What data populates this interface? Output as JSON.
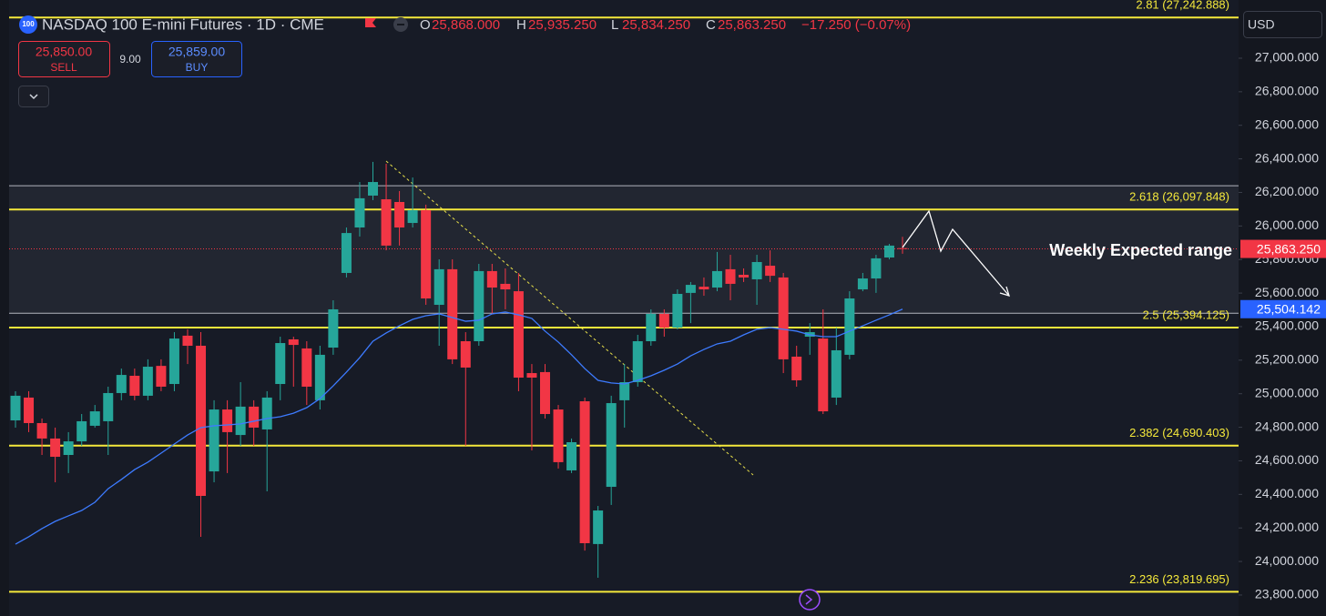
{
  "header": {
    "icon": "100",
    "title": "NASDAQ 100 E-mini Futures · 1D · CME",
    "o_label": "O",
    "open": "25,868.000",
    "h_label": "H",
    "high": "25,935.250",
    "l_label": "L",
    "low": "25,834.250",
    "c_label": "C",
    "close": "25,863.250",
    "change": "−17.250 (−0.07%)",
    "sell_price": "25,850.00",
    "sell_label": "SELL",
    "spread": "9.00",
    "buy_price": "25,859.00",
    "buy_label": "BUY",
    "currency": "USD"
  },
  "chart_data": {
    "type": "candlestick",
    "up_color": "#26a69a",
    "down_color": "#f23645",
    "open": [
      24841,
      24977,
      24825,
      24733,
      24635,
      24716,
      24809,
      24836,
      25004,
      25107,
      24988,
      25166,
      25058,
      25346,
      25286,
      24537,
      24906,
      24754,
      24923,
      24787,
      25058,
      25324,
      25270,
      24961,
      25275,
      25720,
      25991,
      26181,
      26159,
      26143,
      26018,
      26094,
      25530,
      25742,
      25313,
      25313,
      25731,
      25655,
      25611,
      25123,
      25129,
      24906,
      24543,
      24955,
      24104,
      24445,
      24961,
      25069,
      25313,
      25476,
      25394,
      25601,
      25638,
      25633,
      25742,
      25709,
      25682,
      25763,
      25693,
      25221,
      25340,
      25329,
      24977,
      25232,
      25622,
      25687,
      25812,
      25868
    ],
    "high": [
      25015,
      25015,
      24852,
      24798,
      24771,
      24879,
      24933,
      25042,
      25150,
      25150,
      25205,
      25205,
      25367,
      25384,
      25367,
      24961,
      24961,
      25069,
      24961,
      25015,
      25340,
      25340,
      25313,
      25286,
      25557,
      25991,
      26262,
      26382,
      26371,
      26208,
      26289,
      26127,
      25801,
      25801,
      25367,
      25774,
      25774,
      25747,
      25720,
      25177,
      25177,
      24933,
      24733,
      24977,
      24331,
      24988,
      25177,
      25351,
      25503,
      25503,
      25622,
      25666,
      25693,
      25845,
      25828,
      25747,
      25828,
      25855,
      25720,
      25286,
      25421,
      25503,
      25394,
      25611,
      25720,
      25828,
      25893,
      25935.25
    ],
    "low": [
      24798,
      24771,
      24635,
      24472,
      24527,
      24689,
      24798,
      24635,
      24961,
      24961,
      24961,
      25015,
      25015,
      25177,
      24147,
      24472,
      24527,
      24689,
      24689,
      24418,
      24961,
      25042,
      24933,
      24906,
      25232,
      25693,
      25937,
      26154,
      25855,
      25883,
      25991,
      25530,
      25286,
      25177,
      24689,
      25286,
      25476,
      25503,
      25015,
      24662,
      24852,
      24554,
      24527,
      24065,
      23903,
      24337,
      24798,
      25042,
      25286,
      25340,
      25384,
      25421,
      25584,
      25611,
      25557,
      25666,
      25530,
      25666,
      25123,
      25042,
      25232,
      24879,
      24933,
      25205,
      25611,
      25601,
      25801,
      25834.25
    ],
    "close": [
      24988,
      24825,
      24733,
      24624,
      24716,
      24836,
      24895,
      25004,
      25112,
      24988,
      25161,
      25042,
      25329,
      25286,
      24391,
      24906,
      24771,
      24923,
      24798,
      24977,
      25302,
      25291,
      25042,
      25232,
      25503,
      25958,
      26165,
      26262,
      25883,
      25991,
      26094,
      25568,
      25742,
      25205,
      25156,
      25731,
      25633,
      25622,
      25096,
      25096,
      24879,
      24592,
      24711,
      24109,
      24304,
      24944,
      25069,
      25313,
      25476,
      25394,
      25595,
      25649,
      25622,
      25731,
      25655,
      25693,
      25785,
      25703,
      25205,
      25080,
      25367,
      24895,
      25259,
      25568,
      25687,
      25807,
      25883,
      25863.25
    ],
    "ma": {
      "color": "#3d7bff",
      "values": [
        24103,
        24147,
        24196,
        24239,
        24272,
        24304,
        24353,
        24434,
        24489,
        24548,
        24592,
        24646,
        24700,
        24754,
        24798,
        24809,
        24814,
        24820,
        24836,
        24852,
        24863,
        24884,
        24917,
        24971,
        25047,
        25129,
        25215,
        25313,
        25362,
        25405,
        25443,
        25465,
        25476,
        25454,
        25432,
        25438,
        25476,
        25487,
        25470,
        25449,
        25373,
        25308,
        25232,
        25150,
        25080,
        25064,
        25058,
        25080,
        25107,
        25140,
        25177,
        25226,
        25264,
        25297,
        25313,
        25351,
        25384,
        25394,
        25384,
        25373,
        25351,
        25340,
        25340,
        25373,
        25405,
        25438,
        25470,
        25504.142
      ],
      "last_label": "25,504.142"
    },
    "last_price": {
      "value": 25863.25,
      "label": "25,863.250",
      "color": "#f23645"
    },
    "zone": [
      25480,
      26240
    ],
    "levels": [
      {
        "value": 27242.888,
        "label": "2.81 (27,242.888)"
      },
      {
        "value": 26097.848,
        "label": "2.618 (26,097.848)"
      },
      {
        "value": 25394.125,
        "label": "2.5 (25,394.125)"
      },
      {
        "value": 24690.403,
        "label": "2.382 (24,690.403)"
      },
      {
        "value": 23819.695,
        "label": "2.236 (23,819.695)"
      }
    ],
    "level_color": "#f5e93b",
    "annotation": "Weekly Expected range",
    "ylim": [
      23675,
      27347
    ],
    "yticks": [
      {
        "value": 23800,
        "label": "23,800.000"
      },
      {
        "value": 24000,
        "label": "24,000.000"
      },
      {
        "value": 24200,
        "label": "24,200.000"
      },
      {
        "value": 24400,
        "label": "24,400.000"
      },
      {
        "value": 24600,
        "label": "24,600.000"
      },
      {
        "value": 24800,
        "label": "24,800.000"
      },
      {
        "value": 25000,
        "label": "25,000.000"
      },
      {
        "value": 25200,
        "label": "25,200.000"
      },
      {
        "value": 25400,
        "label": "25,400.000"
      },
      {
        "value": 25600,
        "label": "25,600.000"
      },
      {
        "value": 25800,
        "label": "25,800.000"
      },
      {
        "value": 26000,
        "label": "26,000.000"
      },
      {
        "value": 26200,
        "label": "26,200.000"
      },
      {
        "value": 26400,
        "label": "26,400.000"
      },
      {
        "value": 26600,
        "label": "26,600.000"
      },
      {
        "value": 26800,
        "label": "26,800.000"
      },
      {
        "value": 27000,
        "label": "27,000.000"
      }
    ]
  }
}
